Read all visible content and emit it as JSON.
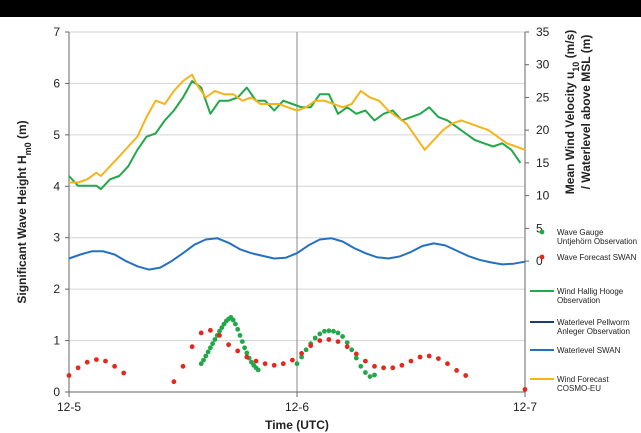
{
  "chart_data": {
    "type": "line",
    "xlabel": "Time (UTC)",
    "x_ticks": [
      "12-5",
      "12-6",
      "12-7"
    ],
    "y_left": {
      "label": "Significant Wave Height H",
      "label_sub": "m0",
      "label_unit": " (m)",
      "ylim": [
        0,
        7
      ],
      "ticks": [
        "0",
        "1",
        "2",
        "3",
        "4",
        "5",
        "6",
        "7"
      ]
    },
    "y_right": {
      "label_line1": "Mean Wind Velocity u",
      "label_line1_sub": "10",
      "label_line1_unit": " (m/s)",
      "label_line2": "/ Waterlevel above MSL (m)",
      "ylim": [
        -20,
        35
      ],
      "ticks": [
        "0",
        "5",
        "10",
        "15",
        "20",
        "25",
        "30",
        "35"
      ]
    },
    "x_unit": "days since 12-5 00:00",
    "series": [
      {
        "name": "Wave Gauge Untjehörn Observation",
        "axis": "left",
        "style": "dots",
        "color": "#22a84a",
        "points": [
          [
            0.58,
            0.55
          ],
          [
            0.59,
            0.62
          ],
          [
            0.6,
            0.7
          ],
          [
            0.61,
            0.78
          ],
          [
            0.62,
            0.86
          ],
          [
            0.63,
            0.94
          ],
          [
            0.64,
            1.02
          ],
          [
            0.65,
            1.1
          ],
          [
            0.66,
            1.18
          ],
          [
            0.67,
            1.25
          ],
          [
            0.68,
            1.32
          ],
          [
            0.69,
            1.38
          ],
          [
            0.7,
            1.42
          ],
          [
            0.71,
            1.45
          ],
          [
            0.72,
            1.4
          ],
          [
            0.73,
            1.32
          ],
          [
            0.74,
            1.22
          ],
          [
            0.75,
            1.1
          ],
          [
            0.76,
            0.98
          ],
          [
            0.77,
            0.86
          ],
          [
            0.78,
            0.76
          ],
          [
            0.79,
            0.66
          ],
          [
            0.8,
            0.58
          ],
          [
            0.81,
            0.52
          ],
          [
            0.82,
            0.47
          ],
          [
            0.83,
            0.43
          ],
          [
            1.0,
            0.55
          ],
          [
            1.02,
            0.68
          ],
          [
            1.04,
            0.82
          ],
          [
            1.06,
            0.94
          ],
          [
            1.08,
            1.05
          ],
          [
            1.1,
            1.13
          ],
          [
            1.12,
            1.18
          ],
          [
            1.14,
            1.19
          ],
          [
            1.16,
            1.18
          ],
          [
            1.18,
            1.15
          ],
          [
            1.2,
            1.08
          ],
          [
            1.22,
            0.96
          ],
          [
            1.24,
            0.82
          ],
          [
            1.26,
            0.66
          ],
          [
            1.28,
            0.5
          ],
          [
            1.3,
            0.38
          ],
          [
            1.32,
            0.3
          ],
          [
            1.34,
            0.33
          ]
        ]
      },
      {
        "name": "Wave Forecast SWAN",
        "axis": "left",
        "style": "dots",
        "color": "#e5281c",
        "points": [
          [
            0.0,
            0.32
          ],
          [
            0.04,
            0.47
          ],
          [
            0.08,
            0.58
          ],
          [
            0.12,
            0.63
          ],
          [
            0.16,
            0.6
          ],
          [
            0.2,
            0.5
          ],
          [
            0.24,
            0.37
          ],
          [
            0.46,
            0.2
          ],
          [
            0.5,
            0.5
          ],
          [
            0.54,
            0.88
          ],
          [
            0.58,
            1.15
          ],
          [
            0.62,
            1.2
          ],
          [
            0.66,
            1.1
          ],
          [
            0.7,
            0.92
          ],
          [
            0.74,
            0.8
          ],
          [
            0.78,
            0.68
          ],
          [
            0.82,
            0.6
          ],
          [
            0.86,
            0.55
          ],
          [
            0.9,
            0.52
          ],
          [
            0.94,
            0.55
          ],
          [
            0.98,
            0.62
          ],
          [
            1.02,
            0.75
          ],
          [
            1.06,
            0.9
          ],
          [
            1.1,
            1.0
          ],
          [
            1.14,
            1.02
          ],
          [
            1.18,
            0.98
          ],
          [
            1.22,
            0.88
          ],
          [
            1.26,
            0.74
          ],
          [
            1.3,
            0.6
          ],
          [
            1.34,
            0.5
          ],
          [
            1.38,
            0.47
          ],
          [
            1.42,
            0.47
          ],
          [
            1.46,
            0.52
          ],
          [
            1.5,
            0.6
          ],
          [
            1.54,
            0.68
          ],
          [
            1.58,
            0.7
          ],
          [
            1.62,
            0.65
          ],
          [
            1.66,
            0.55
          ],
          [
            1.7,
            0.42
          ],
          [
            1.74,
            0.32
          ],
          [
            2.0,
            0.05
          ]
        ]
      },
      {
        "name": "Wind Hallig Hooge Observation",
        "axis": "right",
        "style": "line",
        "color": "#22a84a",
        "points": [
          [
            0.0,
            13.0
          ],
          [
            0.04,
            11.5
          ],
          [
            0.08,
            11.5
          ],
          [
            0.12,
            11.5
          ],
          [
            0.14,
            11.0
          ],
          [
            0.18,
            12.5
          ],
          [
            0.22,
            13.0
          ],
          [
            0.26,
            14.5
          ],
          [
            0.3,
            17.0
          ],
          [
            0.34,
            19.0
          ],
          [
            0.38,
            19.5
          ],
          [
            0.42,
            21.5
          ],
          [
            0.46,
            23.0
          ],
          [
            0.5,
            25.0
          ],
          [
            0.54,
            27.5
          ],
          [
            0.58,
            26.5
          ],
          [
            0.62,
            22.5
          ],
          [
            0.66,
            24.5
          ],
          [
            0.7,
            24.5
          ],
          [
            0.74,
            25.0
          ],
          [
            0.78,
            26.5
          ],
          [
            0.82,
            24.5
          ],
          [
            0.86,
            24.5
          ],
          [
            0.9,
            23.0
          ],
          [
            0.94,
            24.5
          ],
          [
            0.98,
            24.0
          ],
          [
            1.02,
            23.5
          ],
          [
            1.06,
            23.5
          ],
          [
            1.1,
            25.5
          ],
          [
            1.14,
            25.5
          ],
          [
            1.18,
            22.5
          ],
          [
            1.22,
            23.5
          ],
          [
            1.26,
            22.5
          ],
          [
            1.3,
            23.0
          ],
          [
            1.34,
            21.5
          ],
          [
            1.38,
            22.5
          ],
          [
            1.42,
            23.0
          ],
          [
            1.46,
            21.5
          ],
          [
            1.5,
            22.0
          ],
          [
            1.54,
            22.5
          ],
          [
            1.58,
            23.5
          ],
          [
            1.62,
            22.0
          ],
          [
            1.66,
            21.5
          ],
          [
            1.7,
            20.5
          ],
          [
            1.74,
            19.5
          ],
          [
            1.78,
            18.5
          ],
          [
            1.82,
            18.0
          ],
          [
            1.86,
            17.5
          ],
          [
            1.9,
            18.0
          ],
          [
            1.94,
            17.0
          ],
          [
            1.98,
            15.0
          ]
        ]
      },
      {
        "name": "Waterlevel Pellworm Anleger Observation",
        "axis": "right",
        "style": "line",
        "color": "#1e3a78",
        "points": []
      },
      {
        "name": "Waterlevel SWAN",
        "axis": "right",
        "style": "line",
        "color": "#2570c0",
        "points": [
          [
            0.0,
            0.4
          ],
          [
            0.05,
            1.0
          ],
          [
            0.1,
            1.5
          ],
          [
            0.15,
            1.5
          ],
          [
            0.2,
            1.0
          ],
          [
            0.25,
            0.0
          ],
          [
            0.3,
            -0.8
          ],
          [
            0.35,
            -1.3
          ],
          [
            0.4,
            -1.0
          ],
          [
            0.45,
            0.0
          ],
          [
            0.5,
            1.2
          ],
          [
            0.55,
            2.5
          ],
          [
            0.6,
            3.3
          ],
          [
            0.65,
            3.5
          ],
          [
            0.7,
            2.8
          ],
          [
            0.75,
            1.8
          ],
          [
            0.8,
            1.2
          ],
          [
            0.85,
            0.8
          ],
          [
            0.9,
            0.4
          ],
          [
            0.95,
            0.5
          ],
          [
            1.0,
            1.2
          ],
          [
            1.05,
            2.4
          ],
          [
            1.1,
            3.3
          ],
          [
            1.15,
            3.5
          ],
          [
            1.2,
            3.0
          ],
          [
            1.25,
            2.0
          ],
          [
            1.3,
            1.2
          ],
          [
            1.35,
            0.6
          ],
          [
            1.4,
            0.4
          ],
          [
            1.45,
            0.7
          ],
          [
            1.5,
            1.4
          ],
          [
            1.55,
            2.3
          ],
          [
            1.6,
            2.7
          ],
          [
            1.65,
            2.4
          ],
          [
            1.7,
            1.6
          ],
          [
            1.75,
            0.8
          ],
          [
            1.8,
            0.2
          ],
          [
            1.85,
            -0.2
          ],
          [
            1.9,
            -0.5
          ],
          [
            1.95,
            -0.4
          ],
          [
            2.0,
            -0.1
          ]
        ]
      },
      {
        "name": "Wind Forecast COSMO-EU",
        "axis": "right",
        "style": "line",
        "color": "#f5b41c",
        "points": [
          [
            0.0,
            12.0
          ],
          [
            0.04,
            12.0
          ],
          [
            0.08,
            12.5
          ],
          [
            0.12,
            13.5
          ],
          [
            0.14,
            13.0
          ],
          [
            0.18,
            14.5
          ],
          [
            0.22,
            16.0
          ],
          [
            0.26,
            17.5
          ],
          [
            0.3,
            19.0
          ],
          [
            0.34,
            22.0
          ],
          [
            0.38,
            24.5
          ],
          [
            0.42,
            24.0
          ],
          [
            0.46,
            26.0
          ],
          [
            0.5,
            27.5
          ],
          [
            0.54,
            28.5
          ],
          [
            0.56,
            27.0
          ],
          [
            0.6,
            25.0
          ],
          [
            0.64,
            26.0
          ],
          [
            0.68,
            25.5
          ],
          [
            0.72,
            25.5
          ],
          [
            0.76,
            24.5
          ],
          [
            0.8,
            25.0
          ],
          [
            0.84,
            24.0
          ],
          [
            0.88,
            24.0
          ],
          [
            0.92,
            24.0
          ],
          [
            0.96,
            23.5
          ],
          [
            1.0,
            23.0
          ],
          [
            1.04,
            23.5
          ],
          [
            1.08,
            24.5
          ],
          [
            1.12,
            24.5
          ],
          [
            1.16,
            24.0
          ],
          [
            1.2,
            23.5
          ],
          [
            1.24,
            24.0
          ],
          [
            1.28,
            26.0
          ],
          [
            1.32,
            25.0
          ],
          [
            1.36,
            24.5
          ],
          [
            1.4,
            23.0
          ],
          [
            1.44,
            22.0
          ],
          [
            1.48,
            21.0
          ],
          [
            1.52,
            19.0
          ],
          [
            1.56,
            17.0
          ],
          [
            1.6,
            18.5
          ],
          [
            1.64,
            20.0
          ],
          [
            1.68,
            21.0
          ],
          [
            1.72,
            21.5
          ],
          [
            1.76,
            21.0
          ],
          [
            1.8,
            20.5
          ],
          [
            1.84,
            20.0
          ],
          [
            1.88,
            19.0
          ],
          [
            1.92,
            18.0
          ],
          [
            1.96,
            17.5
          ],
          [
            2.0,
            17.0
          ]
        ]
      }
    ],
    "legend": [
      {
        "series": 0,
        "lines": [
          "Wave Gauge",
          "Untjehörn Observation"
        ],
        "marker": "dot",
        "color": "#22a84a"
      },
      {
        "series": 1,
        "lines": [
          "Wave Forecast SWAN"
        ],
        "marker": "dot",
        "color": "#e5281c"
      },
      {
        "series": 2,
        "lines": [
          "Wind Hallig Hooge",
          "Observation"
        ],
        "marker": "line",
        "color": "#22a84a"
      },
      {
        "series": 3,
        "lines": [
          "Waterlevel Pellworm",
          "Anleger Observation"
        ],
        "marker": "line",
        "color": "#1e3a78"
      },
      {
        "series": 4,
        "lines": [
          "Waterlevel SWAN"
        ],
        "marker": "line",
        "color": "#2570c0"
      },
      {
        "series": 5,
        "lines": [
          "Wind Forecast",
          "COSMO-EU"
        ],
        "marker": "line",
        "color": "#f5b41c"
      }
    ],
    "legend_position": "right",
    "grid": true
  }
}
